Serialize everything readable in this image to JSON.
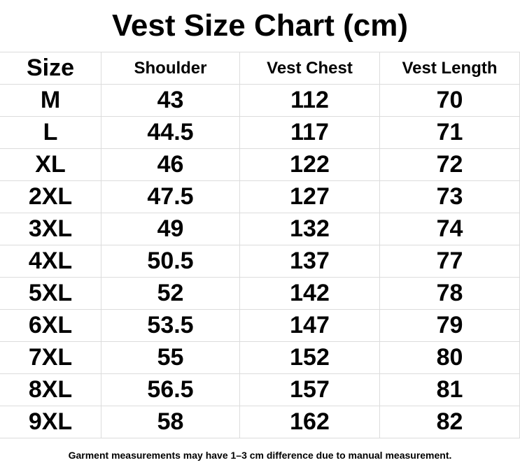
{
  "title": "Vest Size Chart (cm)",
  "table": {
    "header": [
      "Size",
      "Shoulder",
      "Vest Chest",
      "Vest Length"
    ],
    "rows": [
      [
        "M",
        "43",
        "112",
        "70"
      ],
      [
        "L",
        "44.5",
        "117",
        "71"
      ],
      [
        "XL",
        "46",
        "122",
        "72"
      ],
      [
        "2XL",
        "47.5",
        "127",
        "73"
      ],
      [
        "3XL",
        "49",
        "132",
        "74"
      ],
      [
        "4XL",
        "50.5",
        "137",
        "77"
      ],
      [
        "5XL",
        "52",
        "142",
        "78"
      ],
      [
        "6XL",
        "53.5",
        "147",
        "79"
      ],
      [
        "7XL",
        "55",
        "152",
        "80"
      ],
      [
        "8XL",
        "56.5",
        "157",
        "81"
      ],
      [
        "9XL",
        "58",
        "162",
        "82"
      ]
    ]
  },
  "footnote": "Garment measurements may have 1–3 cm difference due to manual measurement."
}
